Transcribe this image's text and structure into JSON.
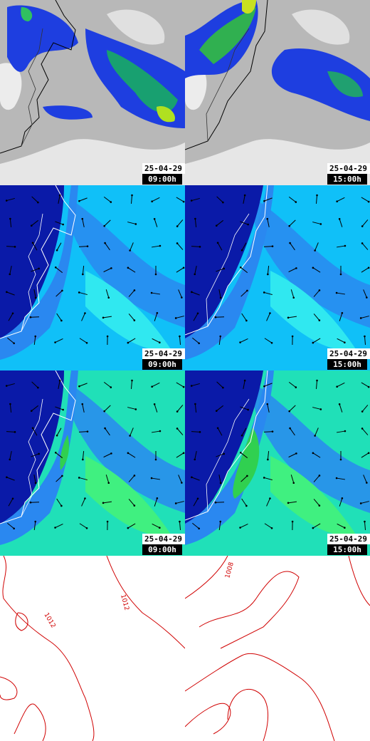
{
  "panels": [
    {
      "date": "25-04-29",
      "time": "09:00h"
    },
    {
      "date": "25-04-29",
      "time": "15:00h"
    },
    {
      "date": "25-04-29",
      "time": "09:00h"
    },
    {
      "date": "25-04-29",
      "time": "15:00h"
    },
    {
      "date": "25-04-29",
      "time": "09:00h"
    },
    {
      "date": "25-04-29",
      "time": "15:00h"
    }
  ],
  "isobar_labels": {
    "left": [
      "1012",
      "1012"
    ],
    "right": [
      "1008"
    ]
  }
}
